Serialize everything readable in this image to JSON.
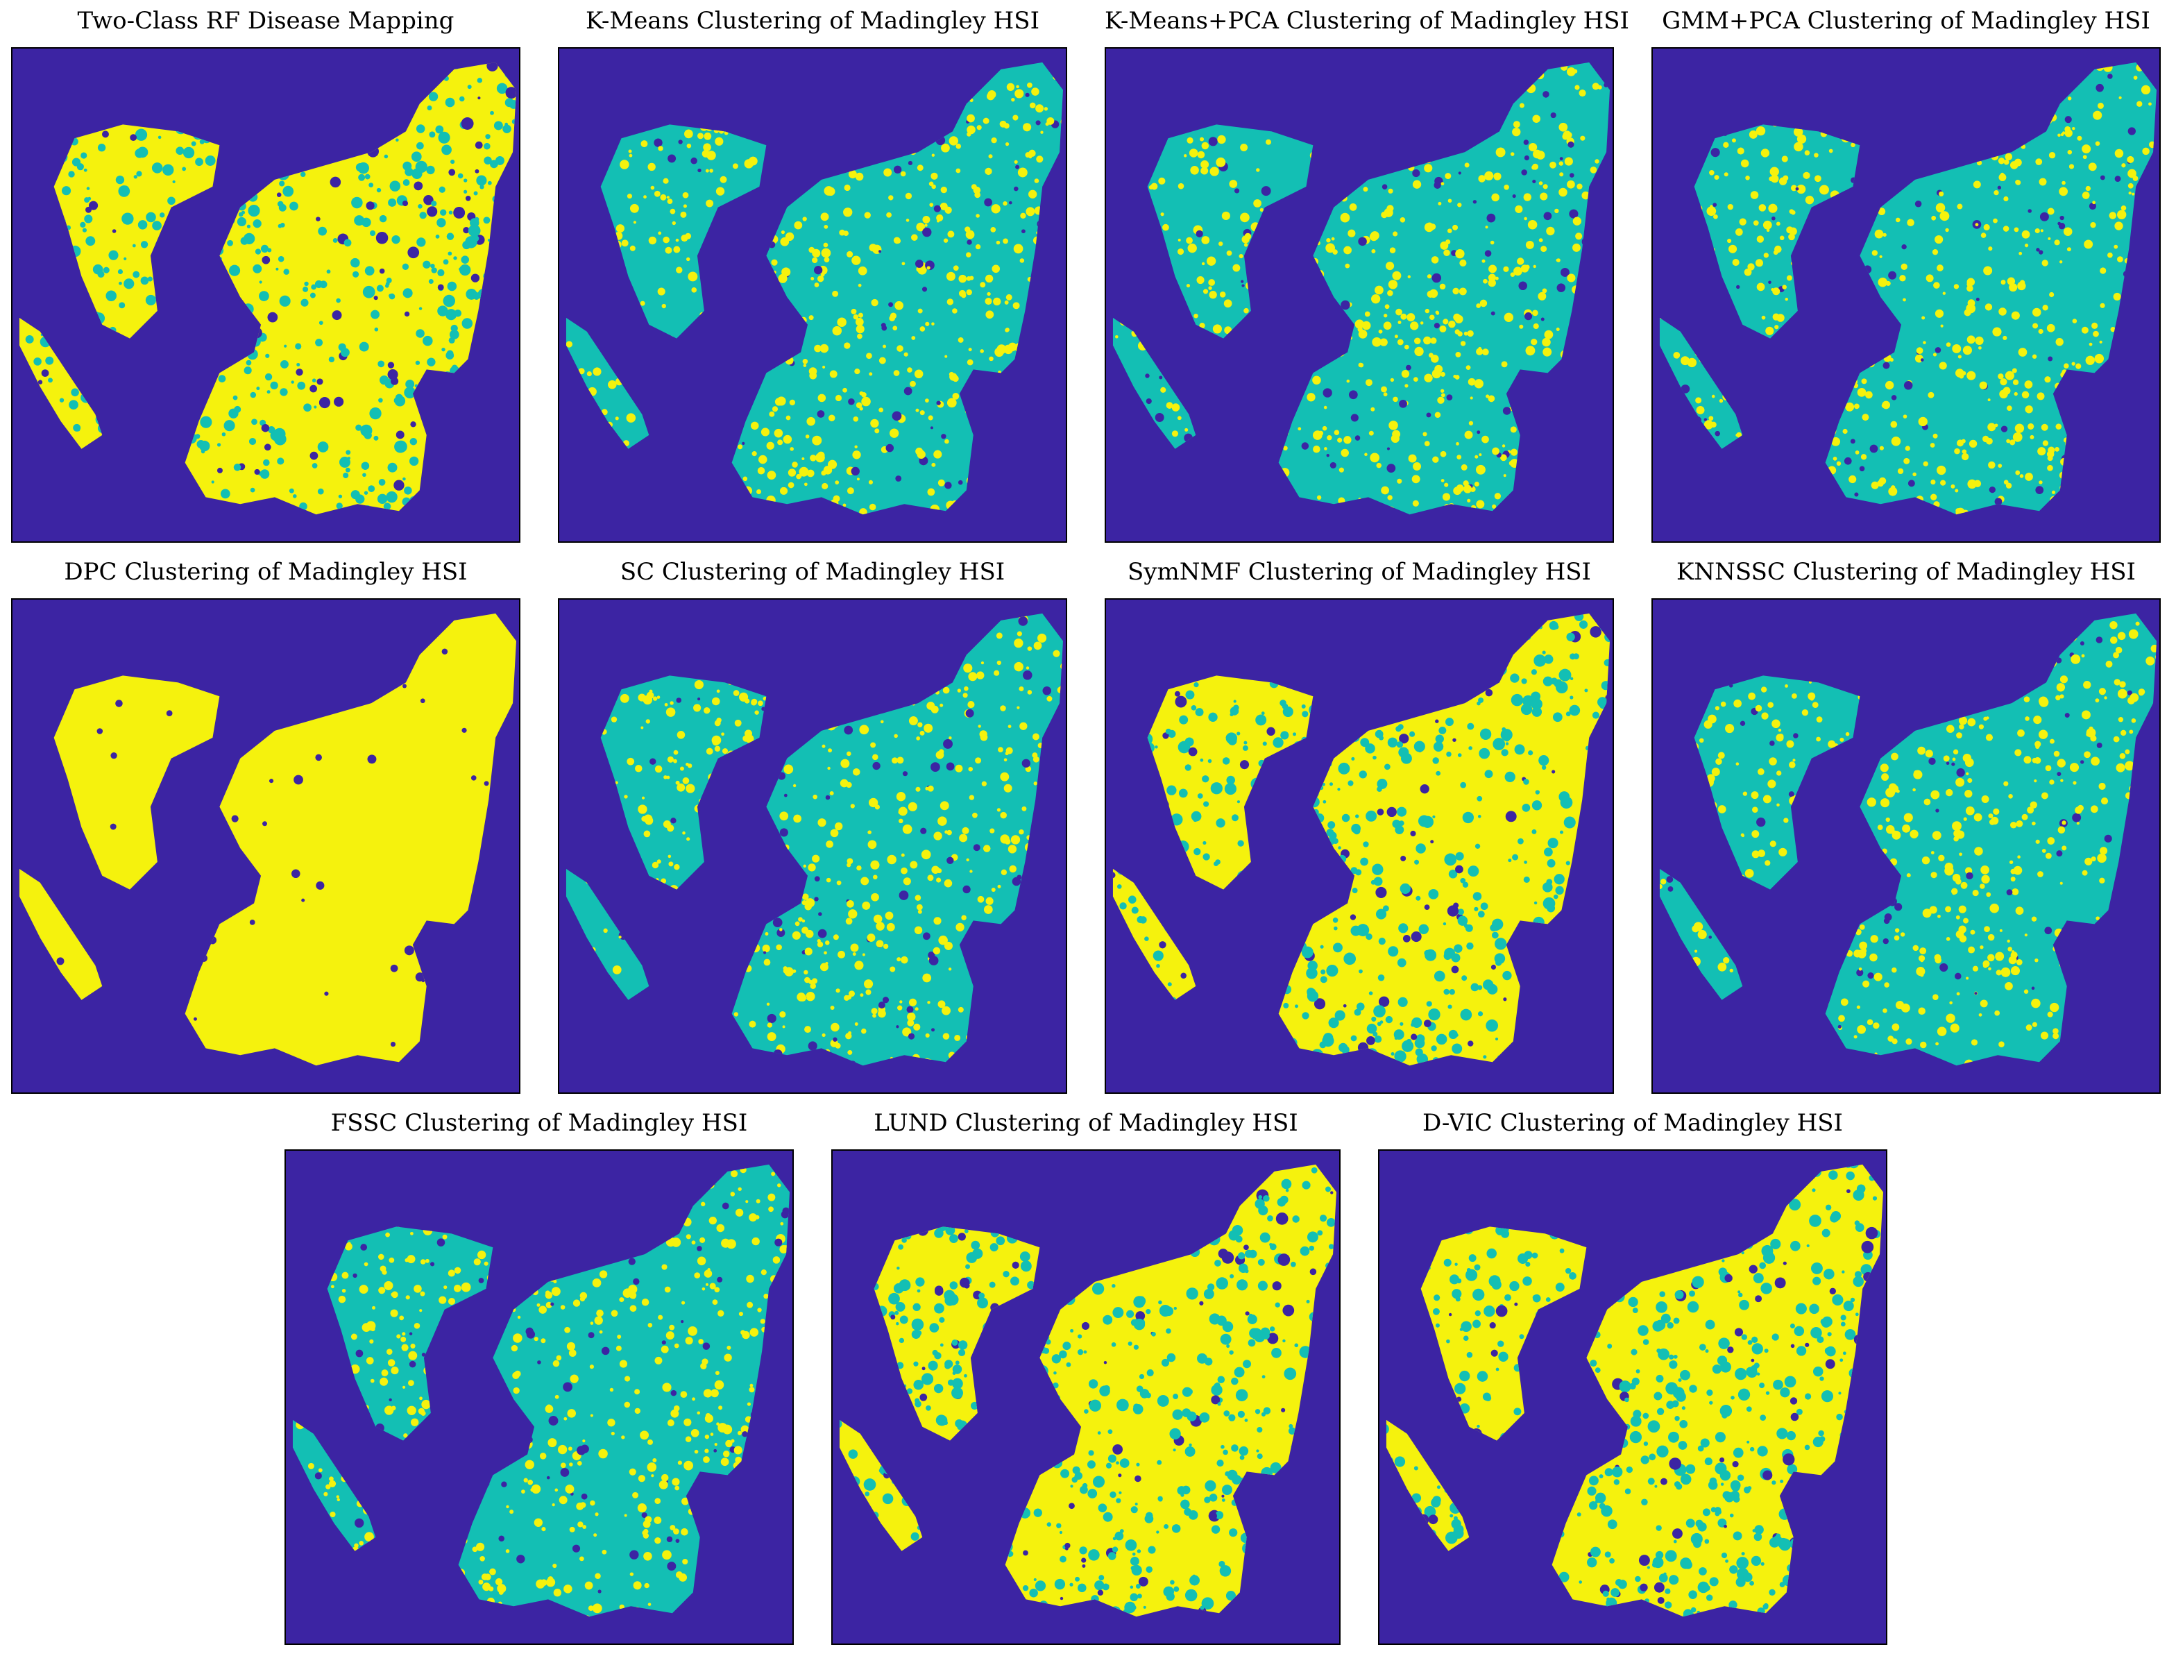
{
  "colors": {
    "background": "#3c24a3",
    "class_teal": "#13bfb4",
    "class_yellow": "#f5f20d"
  },
  "panels": [
    {
      "title": "Two-Class RF Disease Mapping",
      "dominant": "yellow"
    },
    {
      "title": "K-Means Clustering of Madingley HSI",
      "dominant": "teal"
    },
    {
      "title": "K-Means+PCA Clustering of Madingley HSI",
      "dominant": "teal"
    },
    {
      "title": "GMM+PCA Clustering of Madingley HSI",
      "dominant": "teal"
    },
    {
      "title": "DPC Clustering of Madingley HSI",
      "dominant": "yellow-solid"
    },
    {
      "title": "SC Clustering of Madingley HSI",
      "dominant": "teal"
    },
    {
      "title": "SymNMF Clustering of Madingley HSI",
      "dominant": "yellow"
    },
    {
      "title": "KNNSSC Clustering of Madingley HSI",
      "dominant": "teal"
    },
    {
      "title": "FSSC Clustering of Madingley HSI",
      "dominant": "teal"
    },
    {
      "title": "LUND Clustering of Madingley HSI",
      "dominant": "yellow"
    },
    {
      "title": "D-VIC Clustering of Madingley HSI",
      "dominant": "yellow"
    }
  ]
}
